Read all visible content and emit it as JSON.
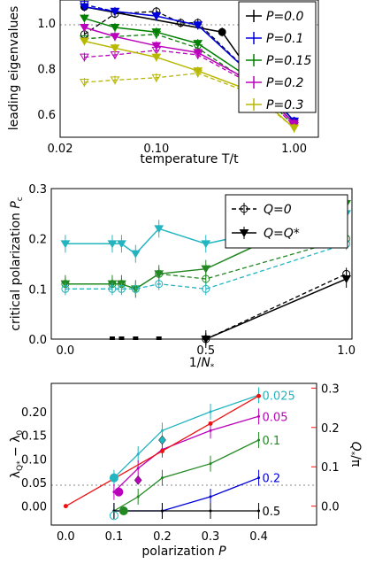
{
  "chart_data": [
    {
      "type": "line",
      "xlabel": "temperature T/t",
      "ylabel": "leading eigenvalues",
      "xscale": "log",
      "xlim": [
        0.02,
        1.5
      ],
      "ylim": [
        0.5,
        1.1
      ],
      "xticks": [
        "0.02",
        "0.10",
        "1.00"
      ],
      "yticks": [
        "0.6",
        "0.8",
        "1.0"
      ],
      "reference_line": 1.0,
      "legend_position": "top-right",
      "series": [
        {
          "name": "P=0.0",
          "color": "#000000",
          "marker": "circle",
          "solid": [
            [
              0.03,
              1.07
            ],
            [
              0.3,
              0.96
            ],
            [
              0.5,
              0.77
            ],
            [
              1.0,
              0.57
            ]
          ],
          "dashed": [
            [
              0.03,
              0.95
            ],
            [
              0.05,
              1.04
            ],
            [
              0.1,
              1.05
            ],
            [
              0.15,
              1.0
            ],
            [
              0.2,
              1.0
            ],
            [
              0.5,
              0.77
            ],
            [
              1.0,
              0.57
            ]
          ]
        },
        {
          "name": "P=0.1",
          "color": "#0000dd",
          "marker": "triangle",
          "solid": [
            [
              0.03,
              1.07
            ],
            [
              0.05,
              1.05
            ],
            [
              0.1,
              1.03
            ],
            [
              0.2,
              0.99
            ],
            [
              0.5,
              0.77
            ],
            [
              1.0,
              0.57
            ]
          ],
          "dashed": [
            [
              0.03,
              1.08
            ],
            [
              0.05,
              1.05
            ],
            [
              0.1,
              1.03
            ],
            [
              0.2,
              0.99
            ],
            [
              0.5,
              0.77
            ],
            [
              1.0,
              0.57
            ]
          ]
        },
        {
          "name": "P=0.15",
          "color": "#008000",
          "marker": "triangle",
          "solid": [
            [
              0.03,
              1.02
            ],
            [
              0.05,
              0.98
            ],
            [
              0.1,
              0.96
            ],
            [
              0.2,
              0.91
            ],
            [
              0.5,
              0.75
            ],
            [
              1.0,
              0.56
            ]
          ],
          "dashed": [
            [
              0.03,
              0.93
            ],
            [
              0.05,
              0.94
            ],
            [
              0.1,
              0.95
            ],
            [
              0.2,
              0.89
            ],
            [
              0.5,
              0.73
            ],
            [
              1.0,
              0.55
            ]
          ]
        },
        {
          "name": "P=0.2",
          "color": "#bb00bb",
          "marker": "triangle",
          "solid": [
            [
              0.03,
              0.98
            ],
            [
              0.05,
              0.94
            ],
            [
              0.1,
              0.9
            ],
            [
              0.2,
              0.87
            ],
            [
              0.5,
              0.74
            ],
            [
              1.0,
              0.56
            ]
          ],
          "dashed": [
            [
              0.03,
              0.85
            ],
            [
              0.05,
              0.86
            ],
            [
              0.1,
              0.88
            ],
            [
              0.2,
              0.86
            ],
            [
              0.5,
              0.73
            ],
            [
              1.0,
              0.55
            ]
          ]
        },
        {
          "name": "P=0.3",
          "color": "#b8b800",
          "marker": "triangle",
          "solid": [
            [
              0.03,
              0.92
            ],
            [
              0.05,
              0.89
            ],
            [
              0.1,
              0.85
            ],
            [
              0.2,
              0.79
            ],
            [
              0.5,
              0.7
            ],
            [
              1.0,
              0.54
            ]
          ],
          "dashed": [
            [
              0.03,
              0.74
            ],
            [
              0.05,
              0.75
            ],
            [
              0.1,
              0.76
            ],
            [
              0.2,
              0.78
            ],
            [
              0.5,
              0.69
            ],
            [
              1.0,
              0.54
            ]
          ]
        }
      ]
    },
    {
      "type": "line",
      "xlabel": "1/N*",
      "ylabel": "critical polarization Pc",
      "xlim": [
        -0.05,
        1.02
      ],
      "ylim": [
        0,
        0.3
      ],
      "xticks": [
        "0.0",
        "0.5",
        "1.0"
      ],
      "yticks": [
        "0.0",
        "0.1",
        "0.2",
        "0.3"
      ],
      "legend_position": "top-right",
      "legend": [
        "Q=0",
        "Q=Q*"
      ],
      "series": [
        {
          "name": "black",
          "color": "#000000",
          "solid": [
            [
              0.5,
              0.0
            ],
            [
              1.0,
              0.12
            ]
          ],
          "dashed": [
            [
              0.5,
              0.0
            ],
            [
              1.0,
              0.13
            ]
          ],
          "zero_points": [
            0.167,
            0.2,
            0.25,
            0.333,
            0.5
          ]
        },
        {
          "name": "green",
          "color": "#228822",
          "solid": [
            [
              0.0,
              0.11
            ],
            [
              0.167,
              0.11
            ],
            [
              0.2,
              0.11
            ],
            [
              0.25,
              0.1
            ],
            [
              0.333,
              0.13
            ],
            [
              0.5,
              0.14
            ],
            [
              1.0,
              0.27
            ]
          ],
          "dashed": [
            [
              0.0,
              0.11
            ],
            [
              0.167,
              0.11
            ],
            [
              0.2,
              0.11
            ],
            [
              0.25,
              0.1
            ],
            [
              0.333,
              0.13
            ],
            [
              0.5,
              0.12
            ],
            [
              1.0,
              0.2
            ]
          ]
        },
        {
          "name": "cyan",
          "color": "#22b5c0",
          "solid": [
            [
              0.0,
              0.19
            ],
            [
              0.167,
              0.19
            ],
            [
              0.2,
              0.19
            ],
            [
              0.25,
              0.17
            ],
            [
              0.333,
              0.22
            ],
            [
              0.5,
              0.19
            ],
            [
              1.0,
              0.25
            ]
          ],
          "dashed": [
            [
              0.0,
              0.1
            ],
            [
              0.167,
              0.1
            ],
            [
              0.2,
              0.1
            ],
            [
              0.25,
              0.1
            ],
            [
              0.333,
              0.11
            ],
            [
              0.5,
              0.1
            ],
            [
              1.0,
              0.19
            ]
          ]
        }
      ]
    },
    {
      "type": "line",
      "xlabel": "polarization P",
      "ylabel": "λQ* − λ0",
      "y2label": "Q*/π",
      "xlim": [
        -0.03,
        0.52
      ],
      "ylim": [
        -0.04,
        0.26
      ],
      "y2lim": [
        -0.048,
        0.312
      ],
      "xticks": [
        "0.0",
        "0.1",
        "0.2",
        "0.3",
        "0.4"
      ],
      "yticks": [
        "0.00",
        "0.05",
        "0.10",
        "0.15",
        "0.20"
      ],
      "y2ticks": [
        "0.0",
        "0.1",
        "0.2",
        "0.3"
      ],
      "series": [
        {
          "name": "0.025",
          "color": "#22b5c0",
          "x": [
            0.1,
            0.15,
            0.2,
            0.3,
            0.4
          ],
          "y": [
            0.06,
            0.11,
            0.16,
            0.2,
            0.235
          ]
        },
        {
          "name": "0.05",
          "color": "#bb00bb",
          "x": [
            0.1,
            0.15,
            0.2,
            0.3,
            0.4
          ],
          "y": [
            0.03,
            0.08,
            0.12,
            0.16,
            0.19
          ]
        },
        {
          "name": "0.1",
          "color": "#228822",
          "x": [
            0.1,
            0.15,
            0.2,
            0.3,
            0.4
          ],
          "y": [
            -0.01,
            0.02,
            0.06,
            0.09,
            0.14
          ]
        },
        {
          "name": "0.2",
          "color": "#0000dd",
          "x": [
            0.1,
            0.2,
            0.3,
            0.4
          ],
          "y": [
            -0.01,
            -0.01,
            0.02,
            0.06
          ]
        },
        {
          "name": "0.5",
          "color": "#000000",
          "x": [
            0.1,
            0.2,
            0.3,
            0.4
          ],
          "y": [
            -0.01,
            -0.01,
            -0.01,
            -0.01
          ]
        },
        {
          "name": "Q*/π",
          "color": "#ee1111",
          "axis": "right",
          "x": [
            0.0,
            0.1,
            0.2,
            0.3,
            0.4
          ],
          "y": [
            0.0,
            0.07,
            0.14,
            0.21,
            0.28
          ]
        }
      ]
    }
  ]
}
